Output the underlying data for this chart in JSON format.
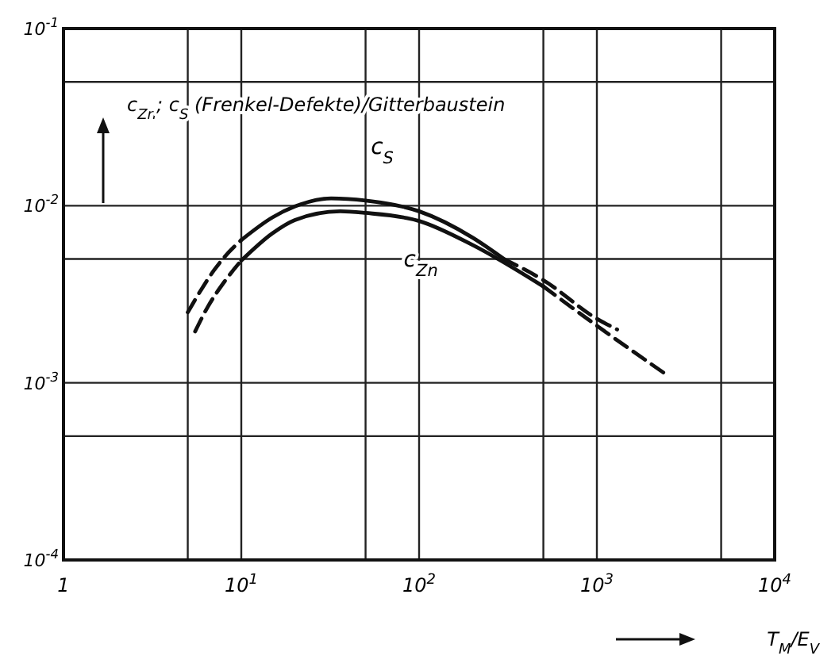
{
  "chart_data": {
    "type": "line",
    "xlabel": "T$_{M}$/E$_{V}$",
    "ylabel": "c$_{Zn}$; c$_{S}$ (Frenkel-Defekte)/Gitterbaustein",
    "log": "xy",
    "grid": true,
    "xlim": [
      1,
      10000
    ],
    "ylim": [
      0.0001,
      0.1
    ],
    "xticks": [
      {
        "value": 1,
        "label": "1"
      },
      {
        "value": 5,
        "label": null
      },
      {
        "value": 10,
        "label": "10$^{1}$"
      },
      {
        "value": 50,
        "label": null
      },
      {
        "value": 100,
        "label": "10$^{2}$"
      },
      {
        "value": 500,
        "label": null
      },
      {
        "value": 1000,
        "label": "10$^{3}$"
      },
      {
        "value": 5000,
        "label": null
      },
      {
        "value": 10000,
        "label": "10$^{4}$"
      }
    ],
    "yticks": [
      {
        "value": 0.0001,
        "label": "10$^{-4}$"
      },
      {
        "value": 0.0005,
        "label": null
      },
      {
        "value": 0.001,
        "label": "10$^{-3}$"
      },
      {
        "value": 0.005,
        "label": null
      },
      {
        "value": 0.01,
        "label": "10$^{-2}$"
      },
      {
        "value": 0.05,
        "label": null
      },
      {
        "value": 0.1,
        "label": "10$^{-1}$"
      }
    ],
    "series": [
      {
        "color": "#111111",
        "line_style": "dashed",
        "x": [
          5,
          6,
          7,
          8,
          10
        ],
        "values": [
          0.0025,
          0.0034,
          0.0043,
          0.0051,
          0.0064
        ]
      },
      {
        "name": "c$_{S}$",
        "color": "#111111",
        "line_style": "solid",
        "x": [
          10,
          15,
          20,
          32,
          50,
          100,
          200,
          300
        ],
        "values": [
          0.0064,
          0.0086,
          0.0099,
          0.011,
          0.0107,
          0.0093,
          0.0066,
          0.005
        ]
      },
      {
        "color": "#111111",
        "line_style": "dashed",
        "x": [
          300,
          500,
          1000,
          1300
        ],
        "values": [
          0.005,
          0.0038,
          0.0023,
          0.002
        ]
      },
      {
        "color": "#111111",
        "line_style": "dashed",
        "x": [
          5.5,
          6.5,
          8,
          10
        ],
        "values": [
          0.00195,
          0.0027,
          0.0037,
          0.0049
        ]
      },
      {
        "name": "c$_{Zn}$",
        "color": "#111111",
        "line_style": "solid",
        "x": [
          10,
          15,
          20,
          36,
          50,
          100,
          200,
          500
        ],
        "values": [
          0.0049,
          0.007,
          0.0083,
          0.0093,
          0.0091,
          0.0082,
          0.006,
          0.0035
        ]
      },
      {
        "color": "#111111",
        "line_style": "dashed",
        "x": [
          500,
          1000,
          2500
        ],
        "values": [
          0.0035,
          0.0021,
          0.0011
        ]
      }
    ]
  }
}
